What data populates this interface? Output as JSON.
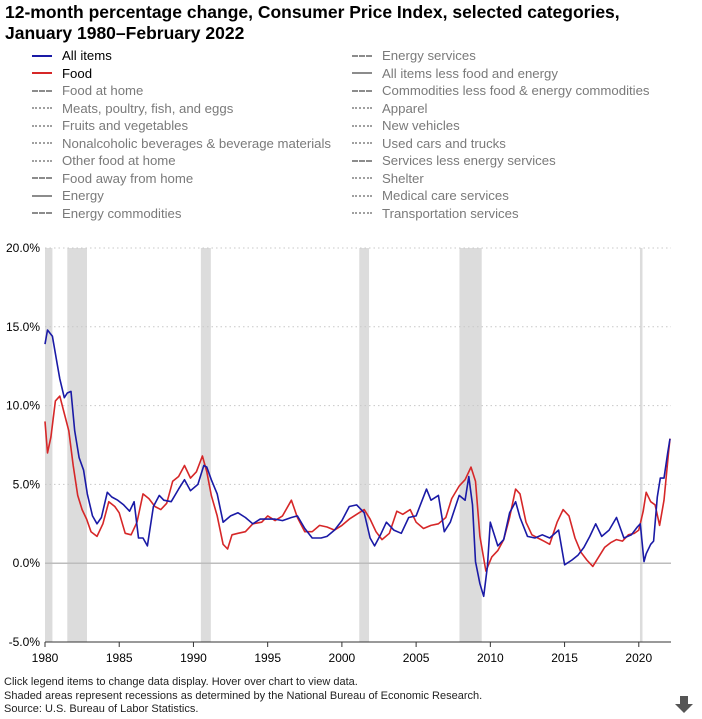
{
  "title": {
    "line1": "12-month percentage change, Consumer Price Index, selected categories,",
    "line2": "January 1980–February 2022"
  },
  "legend": {
    "left": [
      {
        "label": "All items",
        "style": "solid",
        "color": "#1a1aa6",
        "active": true
      },
      {
        "label": "Food",
        "style": "solid",
        "color": "#d62728",
        "active": true
      },
      {
        "label": "Food at home",
        "style": "dash",
        "active": false
      },
      {
        "label": "Meats, poultry, fish, and eggs",
        "style": "dot",
        "active": false
      },
      {
        "label": "Fruits and vegetables",
        "style": "dot",
        "active": false
      },
      {
        "label": "Nonalcoholic beverages & beverage materials",
        "style": "dot",
        "active": false
      },
      {
        "label": "Other food at home",
        "style": "dot",
        "active": false
      },
      {
        "label": "Food away from home",
        "style": "dash",
        "active": false
      },
      {
        "label": "Energy",
        "style": "solid",
        "active": false
      },
      {
        "label": "Energy commodities",
        "style": "dash",
        "active": false
      }
    ],
    "right": [
      {
        "label": "Energy services",
        "style": "dash",
        "active": false
      },
      {
        "label": "All items less food and energy",
        "style": "solid",
        "active": false
      },
      {
        "label": "Commodities less food & energy commodities",
        "style": "dash",
        "active": false
      },
      {
        "label": "Apparel",
        "style": "dot",
        "active": false
      },
      {
        "label": "New vehicles",
        "style": "dot",
        "active": false
      },
      {
        "label": "Used cars and trucks",
        "style": "dot",
        "active": false
      },
      {
        "label": "Services less energy services",
        "style": "dash",
        "active": false
      },
      {
        "label": "Shelter",
        "style": "dot",
        "active": false
      },
      {
        "label": "Medical care services",
        "style": "dot",
        "active": false
      },
      {
        "label": "Transportation services",
        "style": "dot",
        "active": false
      }
    ]
  },
  "chart_data": {
    "type": "line",
    "xlim": [
      1980.0,
      2022.17
    ],
    "ylim": [
      -5,
      20
    ],
    "yticks": [
      -5,
      0,
      5,
      10,
      15,
      20
    ],
    "ytick_labels": [
      "-5.0%",
      "0.0%",
      "5.0%",
      "10.0%",
      "15.0%",
      "20.0%"
    ],
    "xticks": [
      1980,
      1985,
      1990,
      1995,
      2000,
      2005,
      2010,
      2015,
      2020
    ],
    "xtick_labels": [
      "1980",
      "1985",
      "1990",
      "1995",
      "2000",
      "2005",
      "2010",
      "2015",
      "2020"
    ],
    "grid": "horizontal-dotted",
    "recessions": [
      [
        1980.0,
        1980.5
      ],
      [
        1981.5,
        1982.83
      ],
      [
        1990.5,
        1991.17
      ],
      [
        2001.17,
        2001.83
      ],
      [
        2007.92,
        2009.42
      ],
      [
        2020.08,
        2020.25
      ]
    ],
    "series": [
      {
        "name": "All items",
        "color": "#1a1aa6",
        "x": [
          1980.0,
          1980.17,
          1980.5,
          1980.83,
          1981.0,
          1981.3,
          1981.5,
          1981.75,
          1982.0,
          1982.3,
          1982.6,
          1982.85,
          1983.2,
          1983.5,
          1983.8,
          1984.2,
          1984.5,
          1984.9,
          1985.3,
          1985.7,
          1986.0,
          1986.3,
          1986.6,
          1986.9,
          1987.3,
          1987.7,
          1988.0,
          1988.5,
          1989.0,
          1989.4,
          1989.8,
          1990.3,
          1990.7,
          1990.9,
          1991.2,
          1991.6,
          1992.0,
          1992.5,
          1993.0,
          1993.5,
          1994.0,
          1994.5,
          1995.0,
          1995.5,
          1996.0,
          1996.6,
          1997.0,
          1997.5,
          1998.0,
          1998.6,
          1999.0,
          1999.5,
          2000.0,
          2000.5,
          2001.0,
          2001.5,
          2001.9,
          2002.2,
          2002.6,
          2003.0,
          2003.5,
          2004.0,
          2004.5,
          2005.0,
          2005.7,
          2006.0,
          2006.5,
          2006.9,
          2007.3,
          2007.9,
          2008.3,
          2008.55,
          2008.8,
          2009.0,
          2009.3,
          2009.55,
          2009.8,
          2010.0,
          2010.5,
          2010.9,
          2011.3,
          2011.7,
          2012.0,
          2012.5,
          2013.0,
          2013.5,
          2014.0,
          2014.6,
          2015.0,
          2015.5,
          2015.9,
          2016.3,
          2016.7,
          2017.1,
          2017.5,
          2018.0,
          2018.5,
          2019.0,
          2019.5,
          2019.9,
          2020.1,
          2020.35,
          2020.5,
          2020.8,
          2021.0,
          2021.25,
          2021.45,
          2021.7,
          2021.95,
          2022.1
        ],
        "y": [
          13.9,
          14.8,
          14.4,
          12.6,
          11.7,
          10.5,
          10.8,
          10.9,
          8.4,
          6.7,
          5.9,
          4.4,
          3.0,
          2.5,
          2.9,
          4.5,
          4.2,
          4.0,
          3.7,
          3.3,
          3.9,
          1.6,
          1.6,
          1.1,
          3.6,
          4.3,
          4.0,
          3.9,
          4.7,
          5.3,
          4.6,
          5.0,
          6.2,
          6.1,
          5.3,
          4.4,
          2.6,
          3.0,
          3.2,
          2.9,
          2.5,
          2.8,
          2.8,
          2.8,
          2.7,
          2.9,
          3.0,
          2.2,
          1.6,
          1.6,
          1.7,
          2.1,
          2.7,
          3.6,
          3.7,
          3.2,
          1.6,
          1.1,
          1.8,
          2.6,
          2.1,
          1.9,
          2.9,
          3.0,
          4.7,
          4.0,
          4.3,
          2.0,
          2.6,
          4.3,
          4.0,
          5.5,
          3.7,
          0.1,
          -1.3,
          -2.1,
          -0.2,
          2.6,
          1.1,
          1.5,
          3.2,
          3.9,
          2.9,
          1.7,
          1.6,
          1.8,
          1.6,
          2.1,
          -0.1,
          0.2,
          0.5,
          1.0,
          1.7,
          2.5,
          1.7,
          2.1,
          2.9,
          1.6,
          1.8,
          2.3,
          2.5,
          0.1,
          0.6,
          1.2,
          1.4,
          4.2,
          5.4,
          5.4,
          7.0,
          7.9
        ]
      },
      {
        "name": "Food",
        "color": "#d62728",
        "x": [
          1980.0,
          1980.17,
          1980.4,
          1980.7,
          1981.0,
          1981.3,
          1981.6,
          1981.9,
          1982.2,
          1982.5,
          1982.8,
          1983.1,
          1983.5,
          1983.9,
          1984.3,
          1984.7,
          1985.0,
          1985.4,
          1985.8,
          1986.2,
          1986.6,
          1987.0,
          1987.4,
          1987.8,
          1988.2,
          1988.6,
          1989.0,
          1989.4,
          1989.8,
          1990.2,
          1990.6,
          1990.9,
          1991.2,
          1991.6,
          1992.0,
          1992.3,
          1992.6,
          1993.0,
          1993.5,
          1994.0,
          1994.6,
          1995.0,
          1995.5,
          1996.0,
          1996.6,
          1997.0,
          1997.5,
          1998.0,
          1998.5,
          1999.0,
          1999.5,
          2000.0,
          2000.5,
          2001.0,
          2001.5,
          2001.9,
          2002.3,
          2002.7,
          2003.2,
          2003.7,
          2004.1,
          2004.6,
          2005.0,
          2005.5,
          2006.0,
          2006.5,
          2007.0,
          2007.4,
          2007.9,
          2008.3,
          2008.7,
          2009.0,
          2009.3,
          2009.7,
          2010.1,
          2010.5,
          2010.9,
          2011.3,
          2011.7,
          2012.0,
          2012.4,
          2012.8,
          2013.2,
          2013.6,
          2014.0,
          2014.5,
          2014.9,
          2015.3,
          2015.7,
          2016.1,
          2016.5,
          2016.9,
          2017.3,
          2017.7,
          2018.1,
          2018.5,
          2018.9,
          2019.3,
          2019.7,
          2020.0,
          2020.3,
          2020.5,
          2020.8,
          2021.1,
          2021.4,
          2021.7,
          2022.0,
          2022.1
        ],
        "y": [
          9.0,
          7.0,
          8.0,
          10.3,
          10.6,
          9.5,
          8.4,
          6.2,
          4.3,
          3.4,
          2.8,
          2.0,
          1.7,
          2.5,
          3.9,
          3.6,
          3.2,
          1.9,
          1.8,
          2.6,
          4.4,
          4.1,
          3.6,
          3.4,
          3.8,
          5.2,
          5.5,
          6.2,
          5.4,
          5.8,
          6.8,
          5.8,
          4.3,
          3.0,
          1.2,
          0.9,
          1.8,
          1.9,
          2.0,
          2.5,
          2.6,
          3.0,
          2.7,
          3.0,
          4.0,
          2.9,
          2.0,
          2.0,
          2.4,
          2.3,
          2.1,
          2.4,
          2.8,
          3.1,
          3.4,
          2.8,
          2.0,
          1.5,
          1.9,
          3.3,
          3.1,
          3.4,
          2.6,
          2.2,
          2.4,
          2.5,
          2.9,
          4.1,
          4.9,
          5.3,
          6.1,
          5.2,
          1.7,
          -0.5,
          0.4,
          0.8,
          1.5,
          2.9,
          4.7,
          4.4,
          2.6,
          1.8,
          1.6,
          1.4,
          1.2,
          2.6,
          3.4,
          3.0,
          1.6,
          0.7,
          0.2,
          -0.2,
          0.4,
          1.0,
          1.3,
          1.5,
          1.4,
          1.8,
          1.9,
          2.1,
          3.3,
          4.5,
          3.9,
          3.7,
          2.4,
          4.0,
          7.0,
          7.9
        ]
      }
    ]
  },
  "footer": {
    "line1": "Click legend items to change data display. Hover over chart to view data.",
    "line2": "Shaded areas represent recessions as determined by the National Bureau of Economic Research.",
    "line3": "Source: U.S. Bureau of Labor Statistics."
  }
}
